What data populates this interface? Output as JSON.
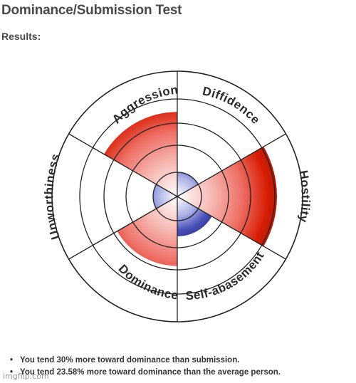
{
  "header": {
    "title": "Dominance/Submission Test",
    "results_label": "Results:"
  },
  "wheel": {
    "sectors": [
      {
        "label": "Aggression",
        "level": 0.8,
        "color": "#d81e05"
      },
      {
        "label": "Diffidence",
        "level": 0.0,
        "color": "#d81e05"
      },
      {
        "label": "Hostility",
        "level": 1.0,
        "color": "#d81e05"
      },
      {
        "label": "Self-abasement",
        "level": 0.33,
        "color": "#4a4fb8"
      },
      {
        "label": "Dominance",
        "level": 0.6,
        "color": "#d81e05"
      },
      {
        "label": "Unworthiness",
        "level": 0.0,
        "color": "#d81e05"
      }
    ],
    "ring_count": 5,
    "inner_red": "#d81e05",
    "inner_blue": "#4a4fb8",
    "line_color": "#222222"
  },
  "results": [
    "You tend 30% more toward dominance than submission.",
    "You tend 23.58% more toward dominance than the average person."
  ],
  "watermark": "imgflip.com"
}
